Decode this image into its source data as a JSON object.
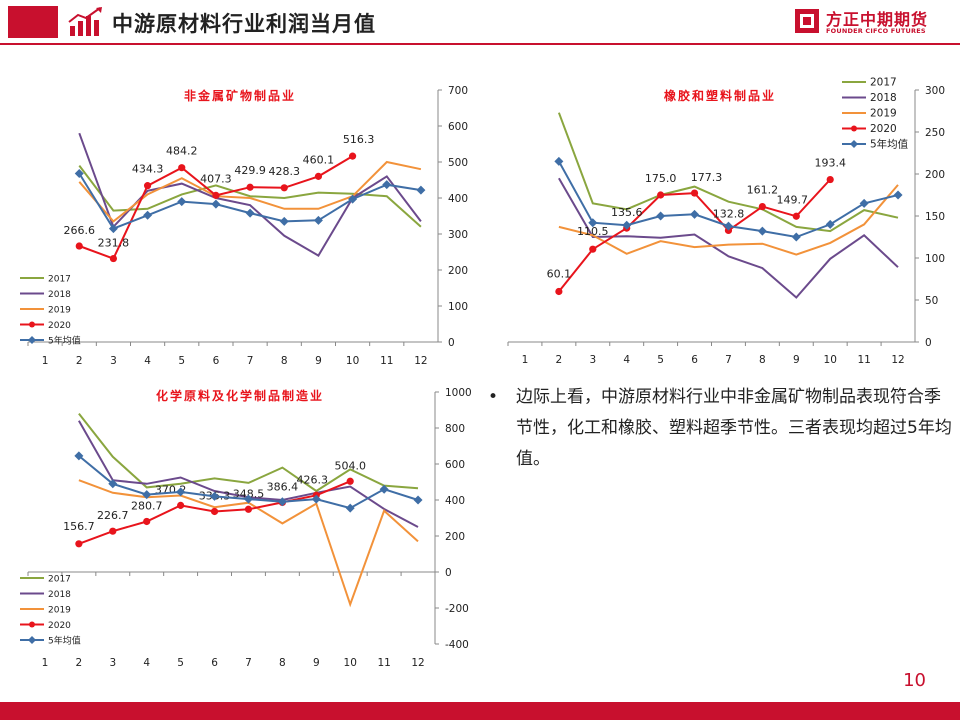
{
  "header": {
    "title": "中游原材料行业利润当月值",
    "logo_cn": "方正中期期货",
    "logo_en": "FOUNDER CIFCO FUTURES"
  },
  "bullet": {
    "symbol": "•",
    "text": "边际上看，中游原材料行业中非金属矿物制品表现符合季节性，化工和橡胶、塑料超季节性。三者表现均超过5年均值。"
  },
  "page_number": "10",
  "colors": {
    "brand": "#c8102e",
    "s2017": "#8aa63f",
    "s2018": "#6b4a8c",
    "s2019": "#f2923a",
    "s2020": "#e8141c",
    "avg": "#3f6ea6"
  },
  "chart_data": [
    {
      "id": "nonmetal",
      "type": "line",
      "title": "非金属矿物制品业",
      "x": [
        1,
        2,
        3,
        4,
        5,
        6,
        7,
        8,
        9,
        10,
        11,
        12
      ],
      "ylim": [
        0,
        700
      ],
      "yticks": [
        0,
        100,
        200,
        300,
        400,
        500,
        600,
        700
      ],
      "y_axis_side": "right",
      "legend_position": "bottom-left",
      "series": [
        {
          "name": "2017",
          "color": "#8aa63f",
          "values": [
            null,
            490,
            365,
            370,
            410,
            435,
            405,
            400,
            415,
            412,
            405,
            320
          ]
        },
        {
          "name": "2018",
          "color": "#6b4a8c",
          "values": [
            null,
            580,
            320,
            420,
            440,
            400,
            380,
            295,
            240,
            400,
            460,
            335
          ]
        },
        {
          "name": "2019",
          "color": "#f2923a",
          "values": [
            null,
            445,
            335,
            410,
            455,
            405,
            400,
            370,
            370,
            405,
            500,
            480
          ]
        },
        {
          "name": "2020",
          "color": "#e8141c",
          "marker": "circle",
          "values": [
            null,
            266.6,
            231.8,
            434.3,
            484.2,
            407.3,
            429.9,
            428.3,
            460.1,
            516.3,
            null,
            null
          ],
          "labels": [
            "",
            "266.6",
            "231.8",
            "434.3",
            "484.2",
            "407.3",
            "429.9",
            "428.3",
            "460.1",
            "516.3",
            "",
            ""
          ]
        },
        {
          "name": "5年均值",
          "color": "#3f6ea6",
          "marker": "diamond",
          "values": [
            null,
            468,
            315,
            352,
            390,
            383,
            358,
            335,
            338,
            397,
            437,
            422
          ]
        }
      ]
    },
    {
      "id": "rubber",
      "type": "line",
      "title": "橡胶和塑料制品业",
      "x": [
        1,
        2,
        3,
        4,
        5,
        6,
        7,
        8,
        9,
        10,
        11,
        12
      ],
      "ylim": [
        0,
        300
      ],
      "yticks": [
        0,
        50,
        100,
        150,
        200,
        250,
        300
      ],
      "y_axis_side": "right",
      "legend_position": "top-right",
      "series": [
        {
          "name": "2017",
          "color": "#8aa63f",
          "values": [
            null,
            273,
            165,
            158,
            175,
            185,
            167,
            158,
            137,
            132,
            157,
            148
          ]
        },
        {
          "name": "2018",
          "color": "#6b4a8c",
          "values": [
            null,
            195,
            125,
            126,
            124,
            128,
            102,
            88,
            53,
            99,
            127,
            89
          ]
        },
        {
          "name": "2019",
          "color": "#f2923a",
          "values": [
            null,
            137,
            127,
            105,
            120,
            113,
            116,
            117,
            104,
            118,
            140,
            187
          ]
        },
        {
          "name": "2020",
          "color": "#e8141c",
          "marker": "circle",
          "values": [
            null,
            60.1,
            110.5,
            135.6,
            175.0,
            177.3,
            132.8,
            161.2,
            149.7,
            193.4,
            null,
            null
          ],
          "labels": [
            "",
            "60.1",
            "110.5",
            "135.6",
            "175.0",
            "177.3",
            "132.8",
            "161.2",
            "149.7",
            "193.4",
            "",
            ""
          ]
        },
        {
          "name": "5年均值",
          "color": "#3f6ea6",
          "marker": "diamond",
          "values": [
            null,
            215,
            142,
            139,
            150,
            152,
            138,
            132,
            125,
            140,
            165,
            175
          ]
        }
      ]
    },
    {
      "id": "chemical",
      "type": "line",
      "title": "化学原料及化学制品制造业",
      "x": [
        1,
        2,
        3,
        4,
        5,
        6,
        7,
        8,
        9,
        10,
        11,
        12
      ],
      "ylim": [
        -400,
        1000
      ],
      "yticks": [
        -400,
        -200,
        0,
        200,
        400,
        600,
        800,
        1000
      ],
      "y_axis_side": "right",
      "legend_position": "bottom-left",
      "series": [
        {
          "name": "2017",
          "color": "#8aa63f",
          "values": [
            null,
            880,
            640,
            470,
            490,
            520,
            495,
            580,
            450,
            570,
            480,
            465
          ]
        },
        {
          "name": "2018",
          "color": "#6b4a8c",
          "values": [
            null,
            840,
            510,
            490,
            525,
            450,
            415,
            400,
            440,
            475,
            350,
            250
          ]
        },
        {
          "name": "2019",
          "color": "#f2923a",
          "values": [
            null,
            510,
            440,
            415,
            425,
            360,
            385,
            270,
            380,
            -180,
            340,
            170
          ]
        },
        {
          "name": "2020",
          "color": "#e8141c",
          "marker": "circle",
          "values": [
            null,
            156.7,
            226.7,
            280.7,
            370.2,
            336.3,
            348.5,
            386.4,
            426.3,
            504.0,
            null,
            null
          ],
          "labels": [
            "",
            "156.7",
            "226.7",
            "280.7",
            "370.2",
            "336.3",
            "348.5",
            "386.4",
            "426.3",
            "504.0",
            "",
            ""
          ]
        },
        {
          "name": "5年均值",
          "color": "#3f6ea6",
          "marker": "diamond",
          "values": [
            null,
            645,
            490,
            430,
            445,
            420,
            405,
            390,
            405,
            355,
            460,
            400
          ]
        }
      ]
    }
  ]
}
